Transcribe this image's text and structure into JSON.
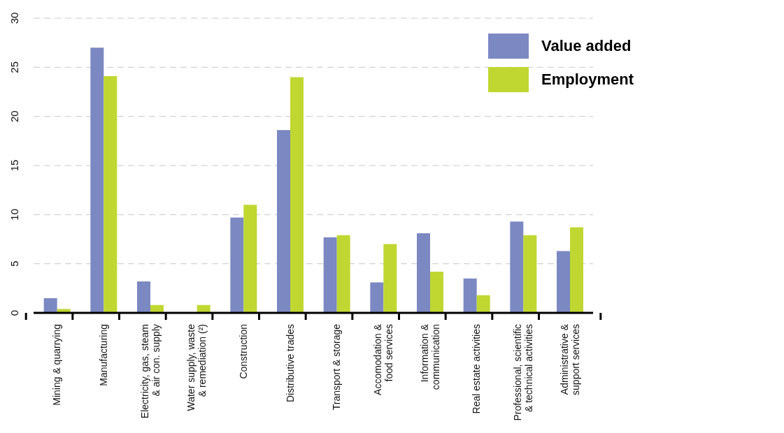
{
  "chart_data": {
    "type": "bar",
    "categories": [
      "Mining & quarrying",
      "Manufacturing",
      "Electricity, gas, steam\n& air con. supply",
      "Water supply, waste\n& remediation (²)",
      "Construction",
      "Distributive trades",
      "Transport & storage",
      "Accomodation &\nfood services",
      "Information &\ncommunication",
      "Real estate activities",
      "Professional, scientific\n& technical activities",
      "Administrative &\nsupport services"
    ],
    "series": [
      {
        "name": "Value added",
        "color": "#7b88c2",
        "values": [
          1.5,
          27.0,
          3.2,
          null,
          9.7,
          18.6,
          7.7,
          3.1,
          8.1,
          3.5,
          9.3,
          6.3
        ]
      },
      {
        "name": "Employment",
        "color": "#c0d731",
        "values": [
          0.4,
          24.1,
          0.8,
          0.8,
          11.0,
          24.0,
          7.9,
          7.0,
          4.2,
          1.8,
          7.9,
          8.7
        ]
      }
    ],
    "ylim": [
      0,
      30
    ],
    "yticks": [
      0,
      5,
      10,
      15,
      20,
      25,
      30
    ],
    "grid": "y",
    "legend": "top right"
  }
}
